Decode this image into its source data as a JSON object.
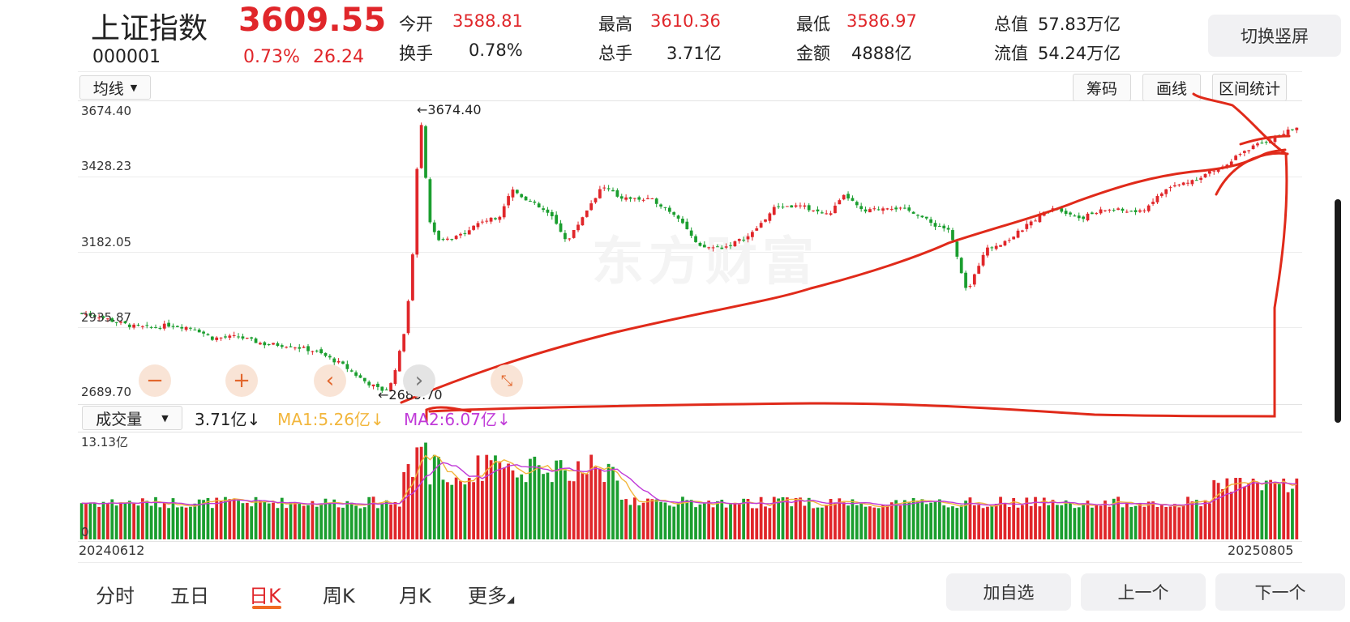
{
  "header": {
    "name": "上证指数",
    "code": "000001",
    "price": "3609.55",
    "change_pct": "0.73%",
    "change_abs": "26.24",
    "switch_label": "切换竖屏"
  },
  "quotes": [
    {
      "label": "今开",
      "value": "3588.81",
      "color": "red"
    },
    {
      "label": "最高",
      "value": "3610.36",
      "color": "red"
    },
    {
      "label": "最低",
      "value": "3586.97",
      "color": "red"
    },
    {
      "label": "总值",
      "value": "57.83万亿",
      "color": "black"
    },
    {
      "label": "换手",
      "value": "0.78%",
      "color": "black"
    },
    {
      "label": "总手",
      "value": "3.71亿",
      "color": "black"
    },
    {
      "label": "金额",
      "value": "4888亿",
      "color": "black"
    },
    {
      "label": "流值",
      "value": "54.24万亿",
      "color": "black"
    }
  ],
  "chart_toolbar": {
    "ma_select": "均线",
    "chips": "筹码",
    "draw": "画线",
    "range_stats": "区间统计"
  },
  "price_axis": [
    "3674.40",
    "3428.23",
    "3182.05",
    "2935.87",
    "2689.70"
  ],
  "annotations": {
    "high": "3674.40",
    "low": "2689.70"
  },
  "watermark": "东方财富",
  "volume_bar": {
    "select": "成交量",
    "current": "3.71亿",
    "ma1": "MA1:5.26亿",
    "ma2": "MA2:6.07亿",
    "arrow": "↓",
    "axis_top": "13.13亿",
    "axis_zero": "0"
  },
  "dates": {
    "start": "20240612",
    "end": "20250805"
  },
  "tabs": [
    "分时",
    "五日",
    "日K",
    "周K",
    "月K",
    "更多"
  ],
  "active_tab": "日K",
  "bottom_buttons": [
    "加自选",
    "上一个",
    "下一个"
  ],
  "colors": {
    "up": "#e0262a",
    "down": "#1b9e2f",
    "ma1": "#f2b63c",
    "ma2": "#c03ad8",
    "drawing": "#e02a1a"
  },
  "chart_data": {
    "type": "candlestick",
    "ylim": [
      2689.7,
      3674.4
    ],
    "x_range": [
      "20240612",
      "20250805"
    ],
    "path_points": [
      [
        0,
        2975
      ],
      [
        0.02,
        2965
      ],
      [
        0.04,
        2945
      ],
      [
        0.06,
        2930
      ],
      [
        0.08,
        2925
      ],
      [
        0.1,
        2935
      ],
      [
        0.13,
        2925
      ],
      [
        0.15,
        2890
      ],
      [
        0.18,
        2895
      ],
      [
        0.21,
        2870
      ],
      [
        0.24,
        2865
      ],
      [
        0.27,
        2845
      ],
      [
        0.3,
        2800
      ],
      [
        0.325,
        2745
      ],
      [
        0.345,
        2712
      ],
      [
        0.355,
        2720
      ],
      [
        0.37,
        2880
      ],
      [
        0.38,
        3100
      ],
      [
        0.39,
        3674.4
      ],
      [
        0.4,
        3300
      ],
      [
        0.41,
        3220
      ],
      [
        0.43,
        3230
      ],
      [
        0.46,
        3290
      ],
      [
        0.48,
        3300
      ],
      [
        0.495,
        3400
      ],
      [
        0.51,
        3370
      ],
      [
        0.54,
        3310
      ],
      [
        0.56,
        3220
      ],
      [
        0.58,
        3320
      ],
      [
        0.6,
        3410
      ],
      [
        0.62,
        3370
      ],
      [
        0.66,
        3360
      ],
      [
        0.69,
        3300
      ],
      [
        0.71,
        3200
      ],
      [
        0.74,
        3200
      ],
      [
        0.77,
        3240
      ],
      [
        0.8,
        3340
      ],
      [
        0.83,
        3340
      ],
      [
        0.86,
        3310
      ],
      [
        0.88,
        3380
      ],
      [
        0.9,
        3320
      ],
      [
        0.93,
        3340
      ],
      [
        0.96,
        3320
      ],
      [
        0.98,
        3280
      ],
      [
        1.0,
        3260
      ],
      [
        1.02,
        3040
      ],
      [
        1.04,
        3190
      ],
      [
        1.07,
        3230
      ],
      [
        1.1,
        3300
      ],
      [
        1.12,
        3340
      ],
      [
        1.15,
        3300
      ],
      [
        1.18,
        3330
      ],
      [
        1.22,
        3320
      ],
      [
        1.25,
        3400
      ],
      [
        1.28,
        3430
      ],
      [
        1.31,
        3470
      ],
      [
        1.34,
        3530
      ],
      [
        1.37,
        3570
      ],
      [
        1.4,
        3609.55
      ]
    ]
  }
}
